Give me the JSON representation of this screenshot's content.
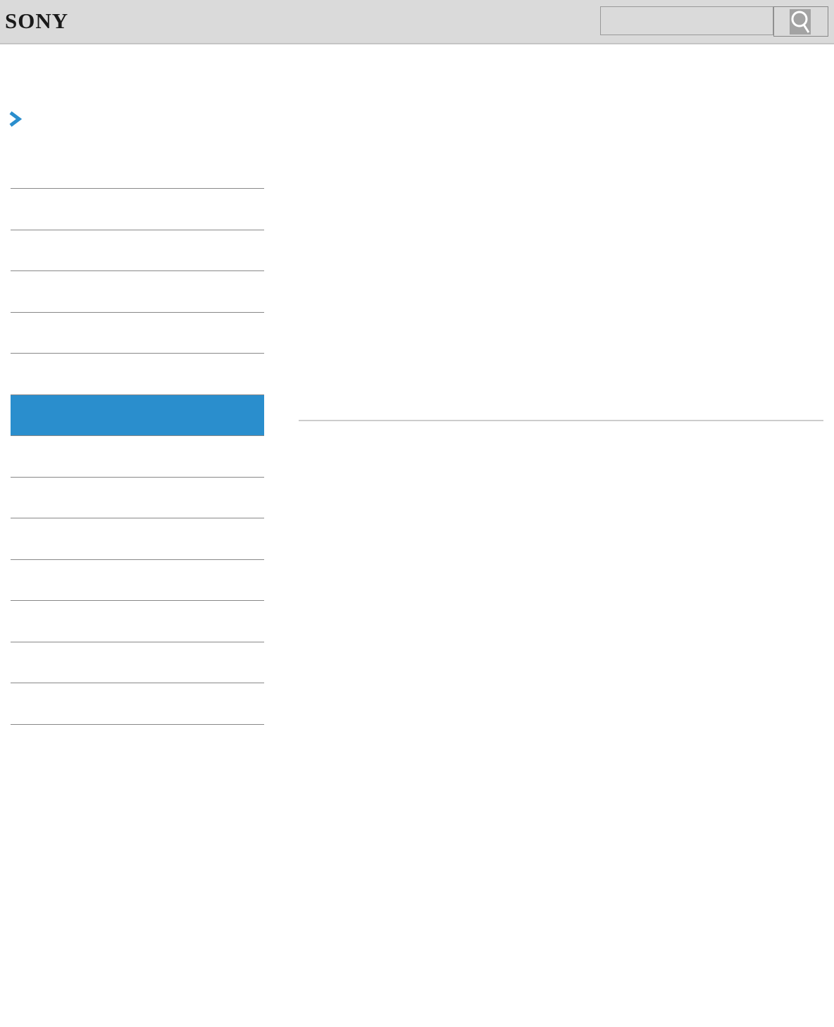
{
  "header": {
    "logo": "SONY",
    "search": {
      "value": "",
      "placeholder": ""
    },
    "search_icon": "magnifier-icon"
  },
  "breadcrumb_icon": "chevron-right-icon",
  "accent_color": "#2a8ecd",
  "nav": {
    "item_count": 13,
    "active_index": 5
  }
}
